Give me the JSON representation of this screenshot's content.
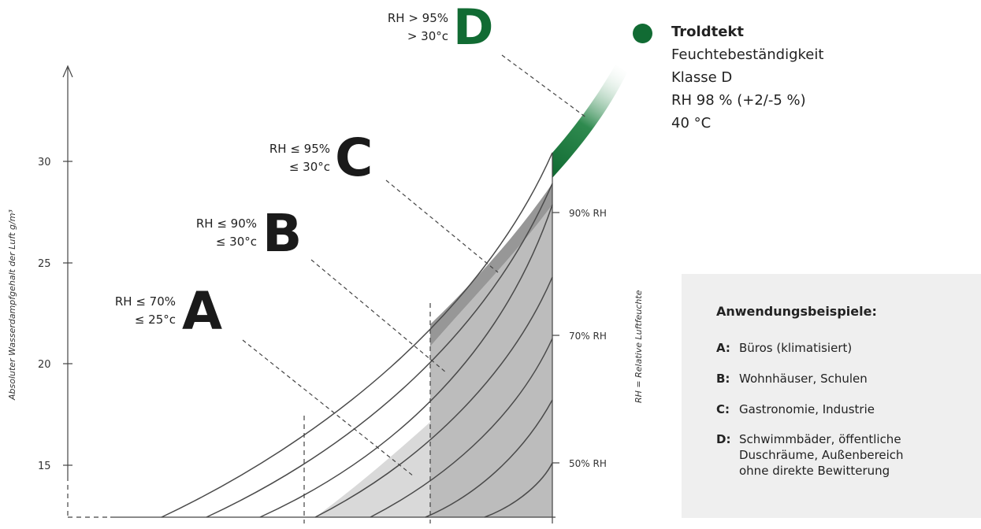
{
  "axis": {
    "y_title": "Absoluter Wasserdampfgehalt der Luft  g/m³",
    "y_ticks": [
      "30",
      "25",
      "20",
      "15"
    ],
    "rh_title": "RH = Relative Luftfeuchte",
    "rh_labels": [
      "90% RH",
      "70% RH",
      "50% RH"
    ]
  },
  "classes": {
    "A": {
      "letter": "A",
      "rh": "RH ≤ 70%",
      "temp": "≤ 25°c"
    },
    "B": {
      "letter": "B",
      "rh": "RH ≤ 90%",
      "temp": "≤ 30°c"
    },
    "C": {
      "letter": "C",
      "rh": "RH ≤ 95%",
      "temp": "≤ 30°c"
    },
    "D": {
      "letter": "D",
      "rh": "RH > 95%",
      "temp": "> 30°c"
    }
  },
  "legend": {
    "title": "Troldtekt",
    "lines": [
      "Feuchtebeständigkeit",
      "Klasse D",
      "RH 98 % (+2/-5 %)",
      "40 °C"
    ]
  },
  "examples": {
    "title": "Anwendungsbeispiele:",
    "items": [
      {
        "key": "A:",
        "text": "Büros (klimatisiert)"
      },
      {
        "key": "B:",
        "text": "Wohnhäuser, Schulen"
      },
      {
        "key": "C:",
        "text": "Gastronomie, Industrie"
      },
      {
        "key": "D:",
        "text": "Schwimmbäder, öffentliche Duschräume, Außenbereich ohne direkte Bewitterung"
      }
    ]
  },
  "colors": {
    "brand_green": "#116b33",
    "band_light": "#d8d8d8",
    "band_mid": "#bcbcbc",
    "band_dark": "#979797"
  }
}
